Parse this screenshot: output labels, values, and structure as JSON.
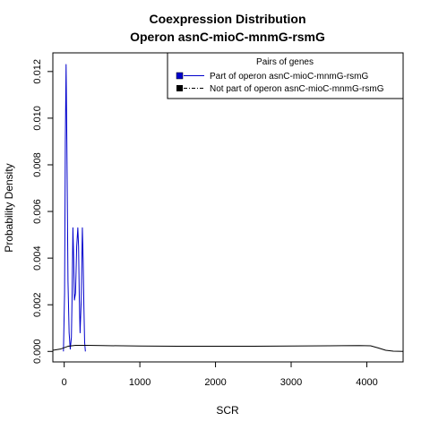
{
  "chart_data": {
    "type": "line",
    "title": "Coexpression Distribution",
    "subtitle": "Operon asnC-mioC-mnmG-rsmG",
    "xlabel": "SCR",
    "ylabel": "Probability Density",
    "xlim": [
      -150,
      4480
    ],
    "ylim": [
      -0.00045,
      0.0128
    ],
    "x_ticks": [
      0,
      1000,
      2000,
      3000,
      4000
    ],
    "y_ticks": [
      0.0,
      0.002,
      0.004,
      0.006,
      0.008,
      0.01,
      0.012
    ],
    "x_tick_labels": [
      "0",
      "1000",
      "2000",
      "3000",
      "4000"
    ],
    "y_tick_labels": [
      "0.000",
      "0.002",
      "0.004",
      "0.006",
      "0.008",
      "0.010",
      "0.012"
    ],
    "grid": false,
    "legend": {
      "title": "Pairs of genes",
      "placement": "top-right",
      "entries": [
        {
          "label": "Part of operon asnC-mioC-mnmG-rsmG",
          "color": "#0000cc",
          "style": "solid"
        },
        {
          "label": "Not part of operon asnC-mioC-mnmG-rsmG",
          "color": "#000000",
          "style": "dashdot"
        }
      ]
    },
    "series": [
      {
        "name": "Part of operon asnC-mioC-mnmG-rsmG",
        "color": "#0000cc",
        "x": [
          -10,
          5,
          15,
          25,
          35,
          50,
          65,
          80,
          95,
          105,
          115,
          125,
          135,
          150,
          165,
          180,
          190,
          200,
          210,
          225,
          240,
          250,
          260,
          270,
          280
        ],
        "y": [
          0.0,
          0.0025,
          0.009,
          0.0123,
          0.009,
          0.003,
          0.0008,
          0.0001,
          0.0006,
          0.0025,
          0.0053,
          0.004,
          0.0022,
          0.0025,
          0.0045,
          0.0053,
          0.0045,
          0.0022,
          0.0008,
          0.0022,
          0.0053,
          0.004,
          0.002,
          0.0004,
          0.0
        ]
      },
      {
        "name": "Not part of operon asnC-mioC-mnmG-rsmG",
        "color": "#000000",
        "x": [
          -150,
          -50,
          50,
          150,
          300,
          500,
          1000,
          1500,
          2000,
          2500,
          3000,
          3500,
          3900,
          4050,
          4150,
          4250,
          4350,
          4480
        ],
        "y": [
          5e-05,
          0.0001,
          0.00022,
          0.00026,
          0.00026,
          0.00025,
          0.00023,
          0.00022,
          0.00022,
          0.00022,
          0.00023,
          0.00024,
          0.00025,
          0.00024,
          0.00015,
          5e-05,
          1e-05,
          0.0
        ]
      }
    ]
  }
}
